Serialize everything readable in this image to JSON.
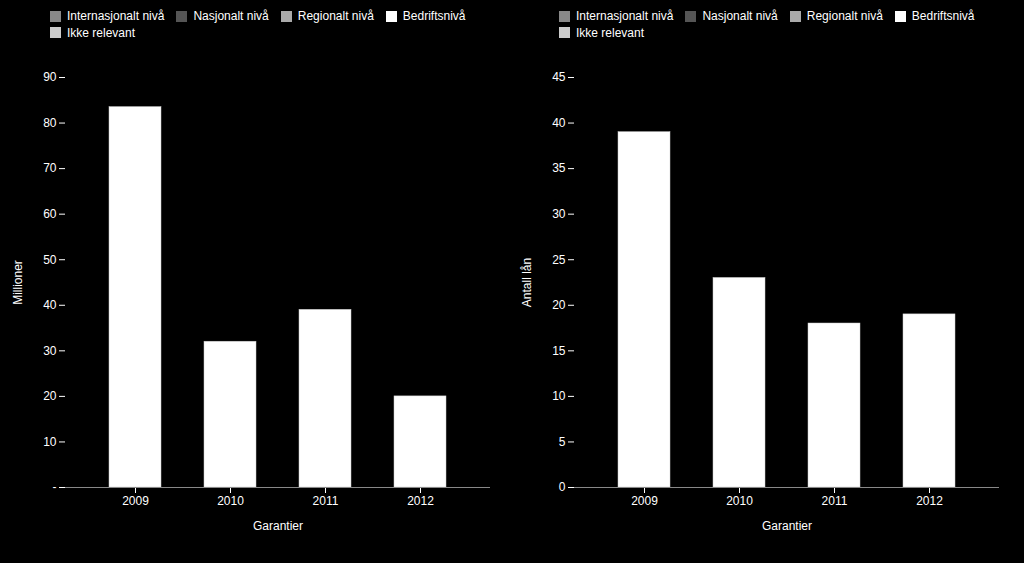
{
  "chart_data": [
    {
      "type": "bar",
      "xlabel": "Garantier",
      "ylabel": "Millioner",
      "categories": [
        "2009",
        "2010",
        "2011",
        "2012"
      ],
      "series": [
        {
          "name": "Internasjonalt nivå",
          "color": "#888888",
          "values": [
            null,
            null,
            null,
            null
          ]
        },
        {
          "name": "Nasjonalt nivå",
          "color": "#555555",
          "values": [
            null,
            null,
            null,
            null
          ]
        },
        {
          "name": "Regionalt nivå",
          "color": "#aaaaaa",
          "values": [
            null,
            null,
            null,
            null
          ]
        },
        {
          "name": "Bedriftsnivå",
          "color": "#ffffff",
          "values": [
            83.5,
            32,
            39,
            20
          ]
        },
        {
          "name": "Ikke relevant",
          "color": "#cccccc",
          "values": [
            null,
            null,
            null,
            null
          ]
        }
      ],
      "ylim": [
        0,
        90
      ],
      "yticks": [
        {
          "value": 0,
          "label": "-"
        },
        10,
        20,
        30,
        40,
        50,
        60,
        70,
        80,
        90
      ]
    },
    {
      "type": "bar",
      "xlabel": "Garantier",
      "ylabel": "Antall lån",
      "categories": [
        "2009",
        "2010",
        "2011",
        "2012"
      ],
      "series": [
        {
          "name": "Internasjonalt nivå",
          "color": "#888888",
          "values": [
            null,
            null,
            null,
            null
          ]
        },
        {
          "name": "Nasjonalt nivå",
          "color": "#555555",
          "values": [
            null,
            null,
            null,
            null
          ]
        },
        {
          "name": "Regionalt nivå",
          "color": "#aaaaaa",
          "values": [
            null,
            null,
            null,
            null
          ]
        },
        {
          "name": "Bedriftsnivå",
          "color": "#ffffff",
          "values": [
            39,
            23,
            18,
            19
          ]
        },
        {
          "name": "Ikke relevant",
          "color": "#cccccc",
          "values": [
            null,
            null,
            null,
            null
          ]
        }
      ],
      "ylim": [
        0,
        45
      ],
      "yticks": [
        0,
        5,
        10,
        15,
        20,
        25,
        30,
        35,
        40,
        45
      ]
    }
  ]
}
